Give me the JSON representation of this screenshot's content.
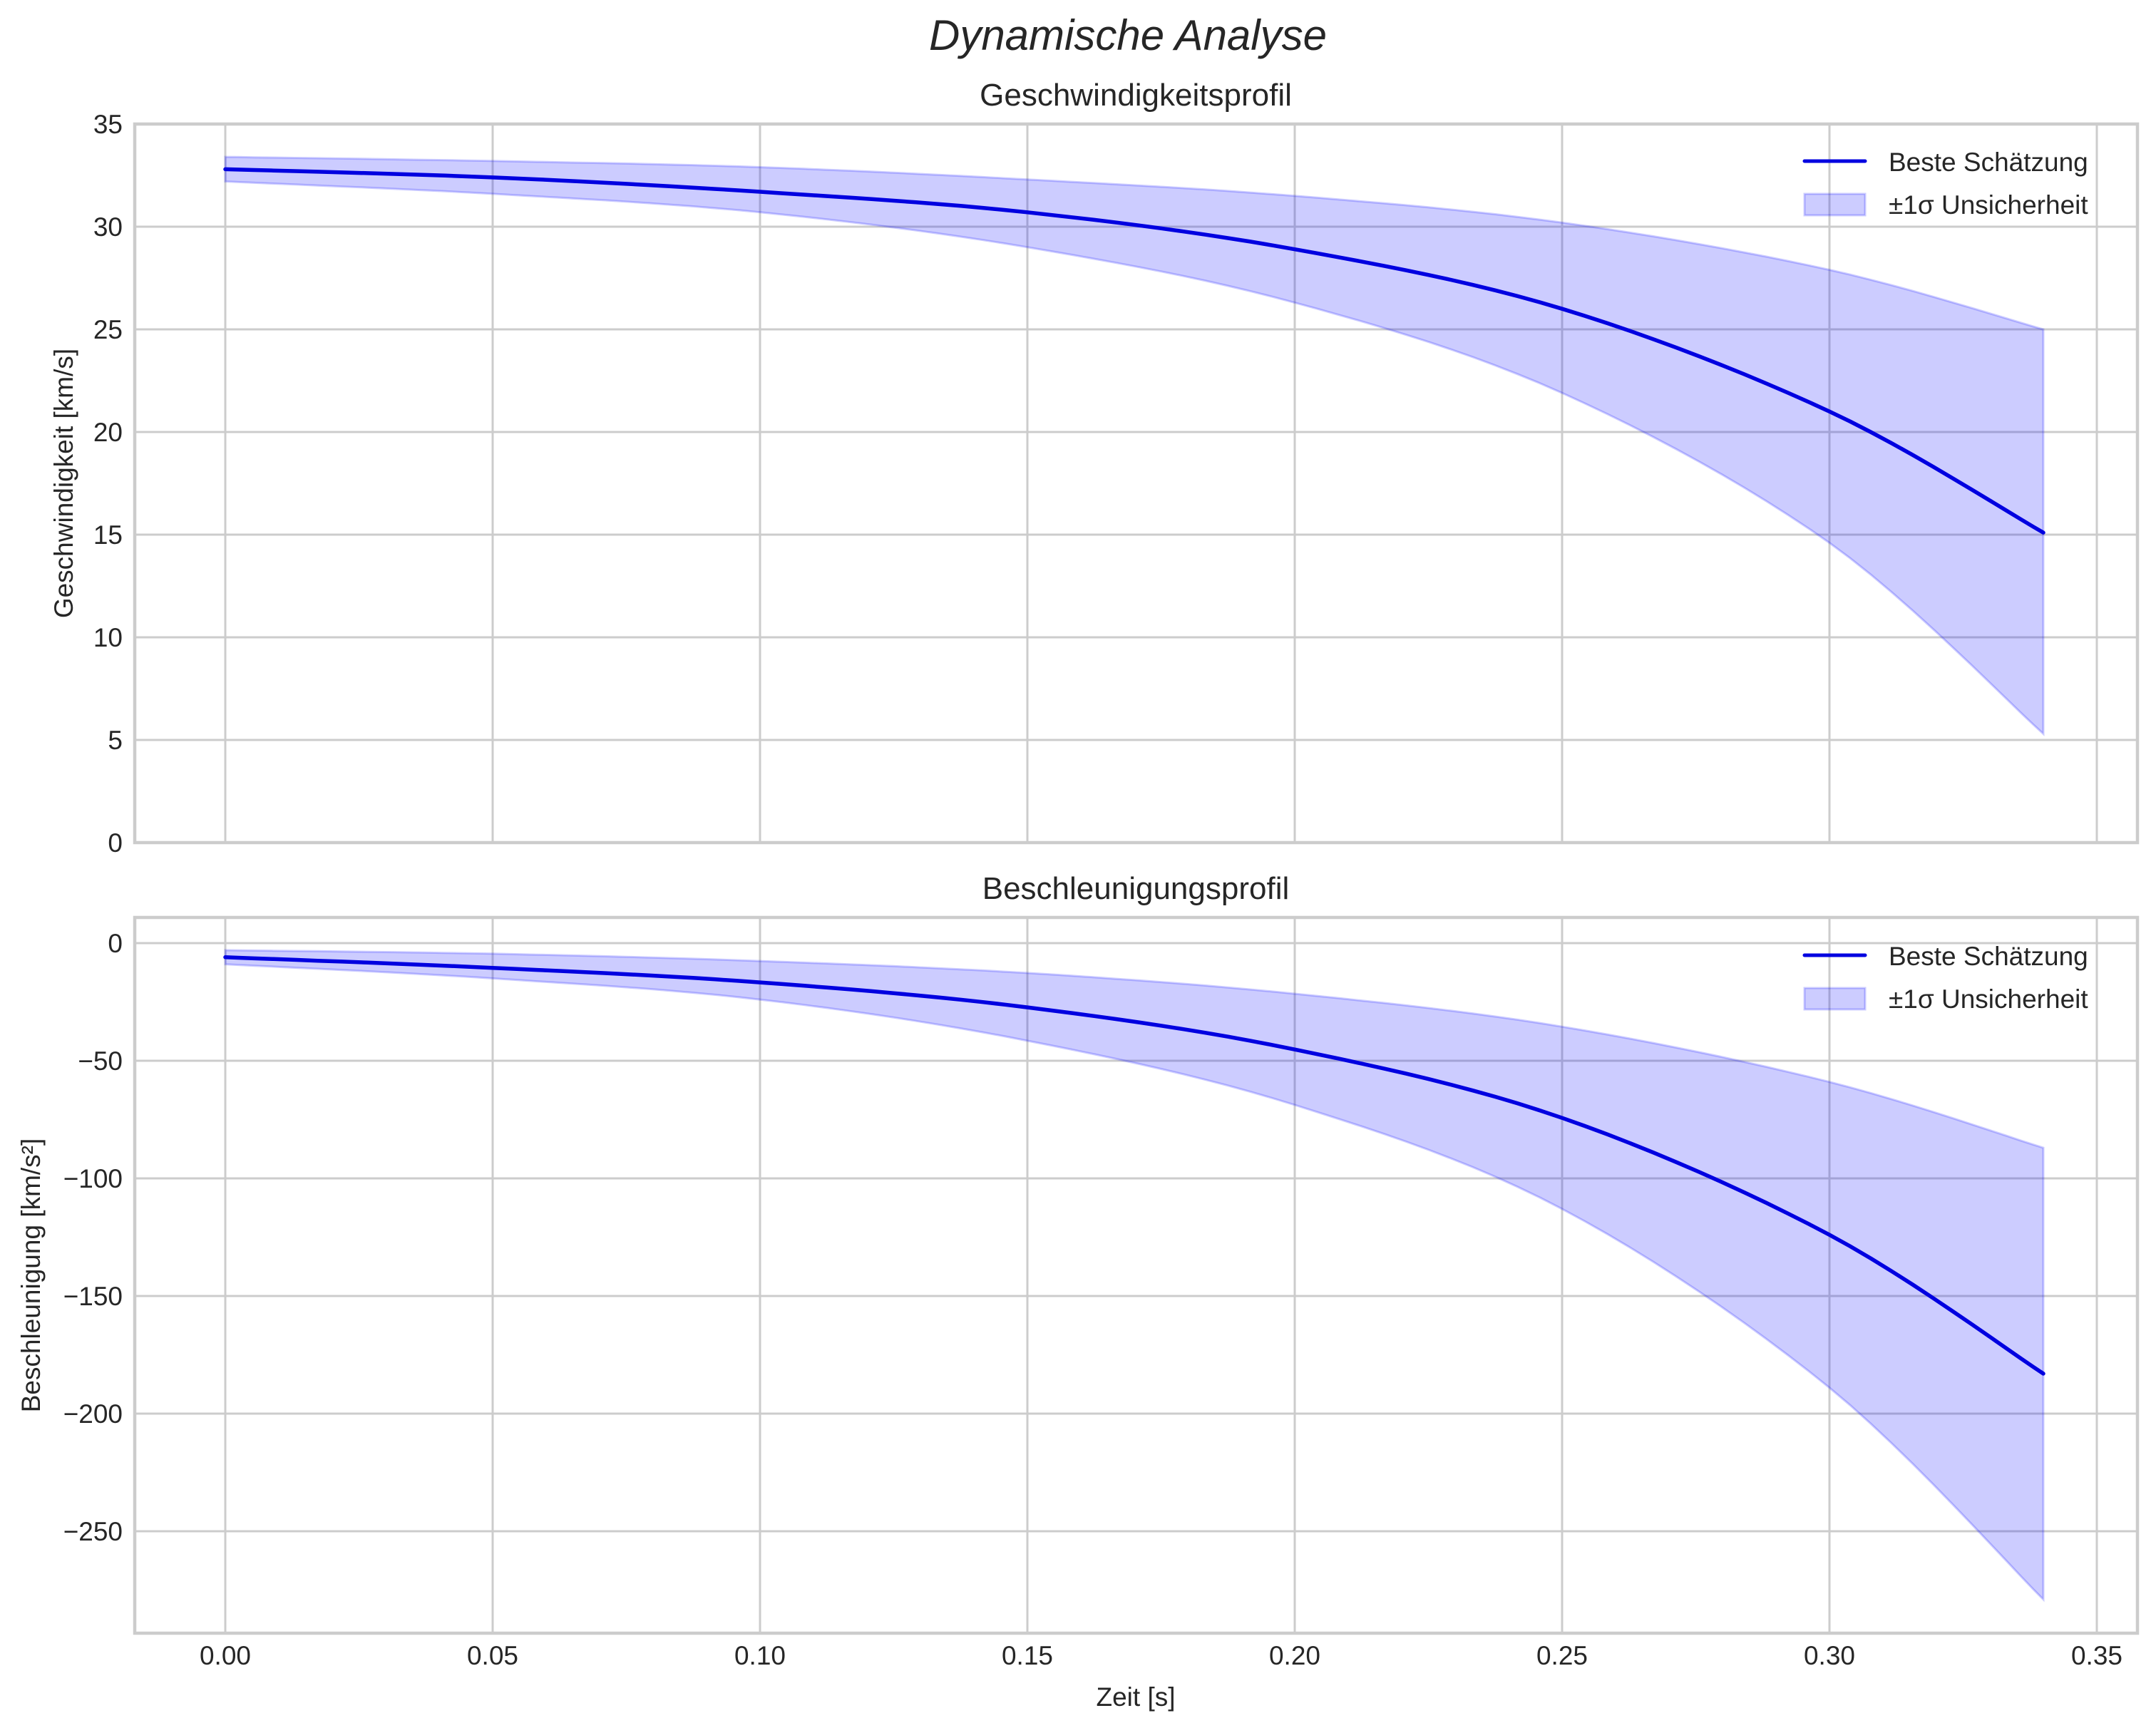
{
  "figure": {
    "suptitle": "Dynamische Analyse"
  },
  "colors": {
    "line": "#0000e0",
    "band_fill": "#0000ff",
    "band_alpha": 0.2,
    "grid": "#cccccc",
    "text": "#262626"
  },
  "chart_data": [
    {
      "type": "line",
      "title": "Geschwindigkeitsprofil",
      "xlabel": "",
      "ylabel": "Geschwindigkeit [km/s]",
      "xlim": [
        -0.017,
        0.357
      ],
      "ylim": [
        0,
        35
      ],
      "xticks": [
        "0.00",
        "0.05",
        "0.10",
        "0.15",
        "0.20",
        "0.25",
        "0.30",
        "0.35"
      ],
      "xticks_visible": false,
      "yticks": [
        0,
        5,
        10,
        15,
        20,
        25,
        30,
        35
      ],
      "grid": true,
      "legend_position": "upper right",
      "legend": [
        "Beste Schätzung",
        "±1σ Unsicherheit"
      ],
      "x": [
        0.0,
        0.05,
        0.1,
        0.15,
        0.2,
        0.25,
        0.3,
        0.34
      ],
      "series": [
        {
          "name": "Beste Schätzung",
          "values": [
            32.8,
            32.4,
            31.7,
            30.7,
            28.9,
            26.0,
            21.0,
            15.1
          ]
        },
        {
          "name": "±1σ Unsicherheit (obere Grenze)",
          "values": [
            33.4,
            33.2,
            32.9,
            32.3,
            31.5,
            30.2,
            27.9,
            25.0
          ]
        },
        {
          "name": "±1σ Unsicherheit (untere Grenze)",
          "values": [
            32.2,
            31.6,
            30.7,
            29.0,
            26.3,
            21.9,
            14.6,
            5.3
          ]
        }
      ]
    },
    {
      "type": "line",
      "title": "Beschleunigungsprofil",
      "xlabel": "Zeit [s]",
      "ylabel": "Beschleunigung [km/s²]",
      "xlim": [
        -0.017,
        0.357
      ],
      "ylim": [
        -293,
        11
      ],
      "xticks": [
        "0.00",
        "0.05",
        "0.10",
        "0.15",
        "0.20",
        "0.25",
        "0.30",
        "0.35"
      ],
      "xticks_visible": true,
      "yticks": [
        0,
        -50,
        -100,
        -150,
        -200,
        -250
      ],
      "ytick_labels": [
        "0",
        "−50",
        "−100",
        "−150",
        "−200",
        "−250"
      ],
      "grid": true,
      "legend_position": "upper right",
      "legend": [
        "Beste Schätzung",
        "±1σ Unsicherheit"
      ],
      "x": [
        0.0,
        0.05,
        0.1,
        0.15,
        0.2,
        0.25,
        0.3,
        0.34
      ],
      "series": [
        {
          "name": "Beste Schätzung",
          "values": [
            -6,
            -10.5,
            -16.7,
            -27.3,
            -45.2,
            -74.3,
            -124,
            -183
          ]
        },
        {
          "name": "±1σ Unsicherheit (obere Grenze)",
          "values": [
            -3,
            -4.5,
            -7.6,
            -12.7,
            -21.5,
            -35.5,
            -59,
            -87
          ]
        },
        {
          "name": "±1σ Unsicherheit (untere Grenze)",
          "values": [
            -9,
            -15,
            -24,
            -41.5,
            -68.8,
            -113,
            -189,
            -279
          ]
        }
      ]
    }
  ]
}
